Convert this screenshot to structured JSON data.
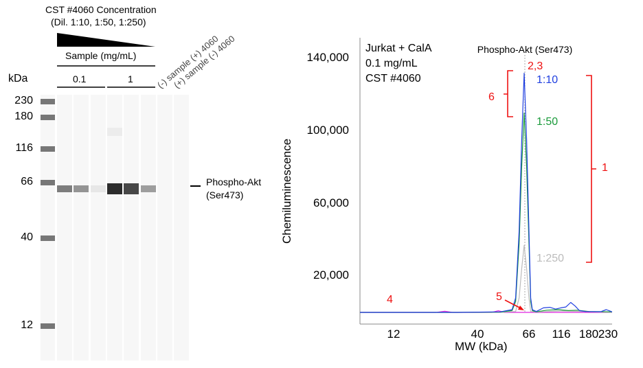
{
  "blot": {
    "header_title": "CST #4060 Concentration",
    "header_subtitle": "(Dil. 1:10, 1:50, 1:250)",
    "sample_label": "Sample (mg/mL)",
    "group_labels": [
      "0.1",
      "1"
    ],
    "control_labels": [
      "(-) sample (+) 4060",
      "(+) sample (-) 4060"
    ],
    "kda_label": "kDa",
    "ladder": [
      "230",
      "180",
      "116",
      "66",
      "40",
      "12"
    ],
    "band_label_line1": "Phospho-Akt",
    "band_label_line2": "(Ser473)",
    "lane_band_intensity": [
      0.55,
      0.45,
      0.07,
      0.92,
      0.8,
      0.4,
      0,
      0
    ],
    "colors": {
      "band": "#1a1a1a",
      "lane": "#f7f7f7"
    }
  },
  "chart_data": {
    "type": "line",
    "title": "Phospho-Akt (Ser473)",
    "xlabel": "MW (kDa)",
    "ylabel": "Chemiluminescence",
    "xscale": "log",
    "xticks": [
      12,
      40,
      66,
      116,
      180,
      230
    ],
    "xtick_labels": [
      "12",
      "40",
      "66",
      "116",
      "180",
      "230"
    ],
    "yticks": [
      20000,
      60000,
      100000,
      140000
    ],
    "ytick_labels": [
      "20,000",
      "60,000",
      "100,000",
      "140,000"
    ],
    "ylim": [
      0,
      150000
    ],
    "xlim": [
      7.4,
      240
    ],
    "grid": false,
    "inset_text": [
      "Jurkat + CalA",
      "0.1 mg/mL",
      "CST #4060"
    ],
    "series": [
      {
        "name": "1:10",
        "color": "#1f3fe0",
        "x": [
          7.4,
          30,
          50,
          56,
          58,
          60,
          61.5,
          63,
          64.5,
          66,
          68,
          70,
          75,
          85,
          95,
          105,
          115,
          125,
          135,
          145,
          155,
          170,
          210,
          225,
          240
        ],
        "y": [
          0,
          0,
          300,
          1500,
          8000,
          45000,
          95000,
          132000,
          95000,
          45000,
          8000,
          1500,
          500,
          2500,
          2800,
          1800,
          2500,
          3000,
          5500,
          3500,
          1000,
          500,
          400,
          1500,
          300
        ]
      },
      {
        "name": "1:50",
        "color": "#1a9a3a",
        "x": [
          7.4,
          30,
          50,
          56,
          58,
          60,
          61.5,
          63,
          64.5,
          66,
          68,
          70,
          75,
          90,
          110,
          130,
          150,
          180,
          240
        ],
        "y": [
          0,
          0,
          200,
          1000,
          6000,
          38000,
          80000,
          110000,
          80000,
          38000,
          6000,
          1000,
          300,
          1200,
          1500,
          1000,
          1200,
          500,
          300
        ]
      },
      {
        "name": "1:250",
        "color": "#bbbbbb",
        "x": [
          7.4,
          50,
          58,
          60,
          61.5,
          63,
          64.5,
          66,
          68,
          75,
          120,
          240
        ],
        "y": [
          0,
          0,
          500,
          8000,
          24000,
          37000,
          24000,
          8000,
          500,
          200,
          800,
          0
        ]
      },
      {
        "name": "",
        "color": "#e020e0",
        "x": [
          7.4,
          22,
          25,
          28,
          40,
          46,
          49,
          52,
          60,
          240
        ],
        "y": [
          0,
          0,
          600,
          0,
          0,
          0,
          900,
          0,
          0,
          0
        ]
      }
    ],
    "annotations": {
      "peak_label": "2,3",
      "bracket_a": "6",
      "bracket_b": "1",
      "mark_low": "4",
      "mark_arrow": "5"
    }
  }
}
